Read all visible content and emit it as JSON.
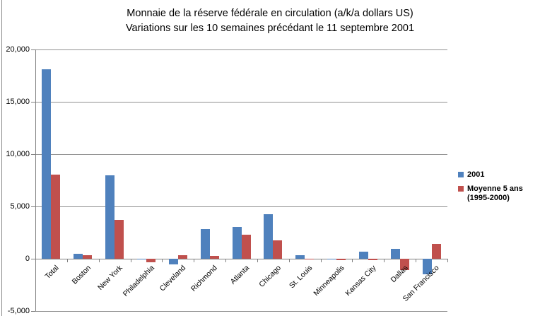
{
  "chart_data": {
    "type": "bar",
    "title": "Monnaie de la réserve fédérale en circulation (a/k/a dollars US)",
    "subtitle": "Variations sur les 10 semaines précédant le 11 septembre 2001",
    "categories": [
      "Total",
      "Boston",
      "New York",
      "Philadelphia",
      "Cleveland",
      "Richmond",
      "Atlanta",
      "Chicago",
      "St. Louis",
      "Minneapolis",
      "Kansas City",
      "Dallas",
      "San Francisco"
    ],
    "series": [
      {
        "name": "2001",
        "color": "#4F81BD",
        "values": [
          18100,
          500,
          7950,
          -30,
          -550,
          2850,
          3050,
          4270,
          350,
          -100,
          650,
          950,
          -1500
        ]
      },
      {
        "name": "Moyenne 5 ans (1995-2000)",
        "color": "#C0504D",
        "values": [
          8050,
          350,
          3700,
          -370,
          330,
          250,
          2300,
          1760,
          -20,
          -130,
          -150,
          -1100,
          1450
        ]
      }
    ],
    "ylim": [
      -5000,
      20000
    ],
    "yticks": [
      {
        "v": 20000,
        "label": "20,000"
      },
      {
        "v": 15000,
        "label": "15,000"
      },
      {
        "v": 10000,
        "label": "10,000"
      },
      {
        "v": 5000,
        "label": "5,000"
      },
      {
        "v": 0,
        "label": "0"
      },
      {
        "v": -5000,
        "label": "-5,000"
      }
    ],
    "grid": true,
    "legend_position": "right",
    "xlabel": "",
    "ylabel": ""
  },
  "colors": {
    "axis": "#808080",
    "gridline": "#919191",
    "background": "#ffffff"
  }
}
